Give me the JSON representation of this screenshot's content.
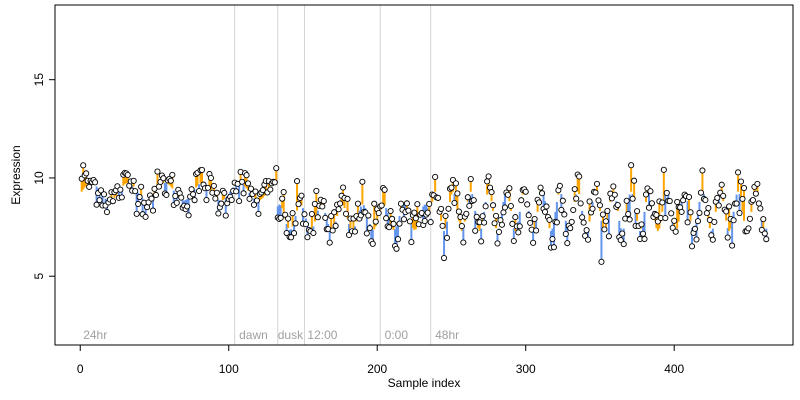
{
  "chart_data": {
    "type": "scatter",
    "xlabel": "Sample index",
    "ylabel": "Expression",
    "xlim": [
      -17,
      480
    ],
    "ylim": [
      1.5,
      18.8
    ],
    "x_ticks": [
      0,
      100,
      200,
      300,
      400
    ],
    "y_ticks": [
      5,
      10,
      15
    ],
    "x_tick_labels": [
      "0",
      "100",
      "200",
      "300",
      "400"
    ],
    "y_tick_labels": [
      "5",
      "10",
      "15"
    ],
    "vlines": [
      104,
      133,
      151,
      202,
      236
    ],
    "annotations": [
      {
        "x": 2,
        "text": "24hr"
      },
      {
        "x": 107,
        "text": "dawn"
      },
      {
        "x": 133,
        "text": "dusk"
      },
      {
        "x": 153,
        "text": "12:00"
      },
      {
        "x": 205,
        "text": "0:00"
      },
      {
        "x": 239,
        "text": "48hr"
      }
    ],
    "annotation_y": 2.0,
    "colors": {
      "point_fill": "#ffffff",
      "point_stroke": "#000000",
      "above": "#FFA500",
      "below": "#6495ED",
      "grid": "#d3d3d3",
      "annot": "#a0a0a0"
    },
    "segments": [
      {
        "x_start": 1,
        "x_end": 133,
        "base": 9.15,
        "slope": 0.0,
        "amp": 0.45,
        "period": 25,
        "level": 9.3,
        "phase": 0.0
      },
      {
        "x_start": 133,
        "x_end": 237,
        "base": 8.05,
        "slope": 0.0,
        "amp": 0.65,
        "period": 14,
        "level": 8.0,
        "phase": 1.0
      },
      {
        "x_start": 237,
        "x_end": 462,
        "base": 8.2,
        "slope": 0.0,
        "amp": 1.0,
        "period": 12,
        "level": 8.3,
        "phase": 0.5
      }
    ],
    "n_points": 462
  }
}
